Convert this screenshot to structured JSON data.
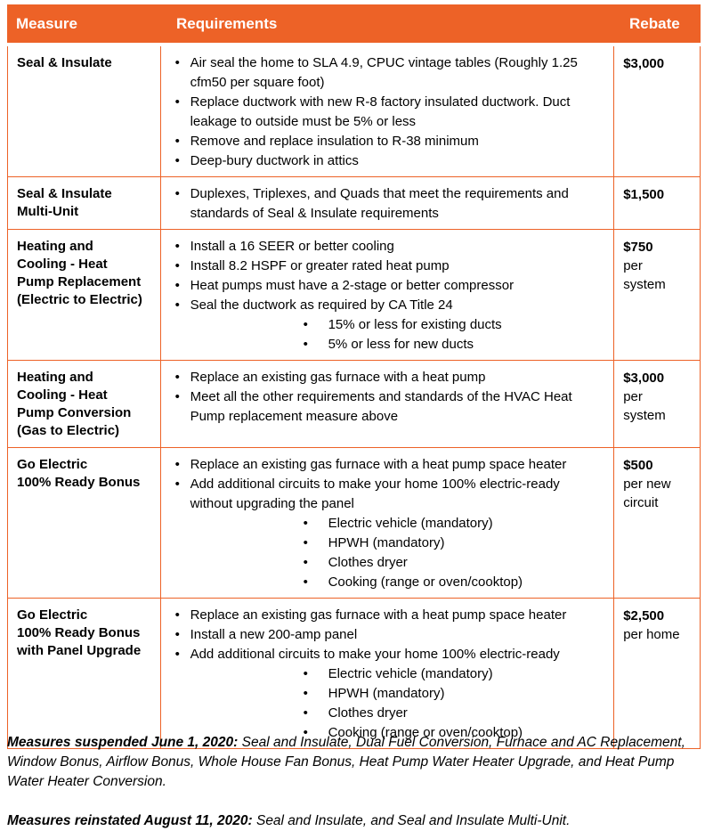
{
  "page": {
    "accent_color": "#ED6227",
    "text_color": "#000000",
    "background": "#ffffff"
  },
  "table": {
    "headers": [
      "Measure",
      "Requirements",
      "Rebate"
    ],
    "rows": [
      {
        "measure": "Seal & Insulate",
        "requirements": [
          {
            "level": 1,
            "text": "Air seal the home to SLA 4.9, CPUC vintage tables (Roughly 1.25 cfm50 per square foot)"
          },
          {
            "level": 1,
            "text": "Replace ductwork with new R-8 factory insulated ductwork. Duct leakage to outside must be 5% or less"
          },
          {
            "level": 1,
            "text": "Remove and replace insulation to R-38 minimum"
          },
          {
            "level": 1,
            "text": "Deep-bury ductwork in attics"
          }
        ],
        "rebate_amount": "$3,000",
        "rebate_unit": ""
      },
      {
        "measure": "Seal & Insulate\nMulti-Unit",
        "requirements": [
          {
            "level": 1,
            "text": "Duplexes, Triplexes, and Quads that meet the requirements and standards of Seal & Insulate requirements"
          }
        ],
        "rebate_amount": "$1,500",
        "rebate_unit": ""
      },
      {
        "measure": "Heating and\nCooling - Heat\nPump Replacement\n(Electric to Electric)",
        "requirements": [
          {
            "level": 1,
            "text": "Install a 16 SEER or better cooling"
          },
          {
            "level": 1,
            "text": "Install 8.2 HSPF or greater rated heat pump"
          },
          {
            "level": 1,
            "text": "Heat pumps must have a 2-stage or better compressor"
          },
          {
            "level": 1,
            "text": "Seal the ductwork as required by CA Title 24"
          },
          {
            "level": 2,
            "text": "15% or less for existing ducts"
          },
          {
            "level": 2,
            "text": "5% or less for new ducts"
          }
        ],
        "rebate_amount": "$750",
        "rebate_unit": "per\nsystem"
      },
      {
        "measure": "Heating and\nCooling - Heat\nPump Conversion\n(Gas to Electric)",
        "requirements": [
          {
            "level": 1,
            "text": "Replace an existing gas furnace with a heat pump"
          },
          {
            "level": 1,
            "text": "Meet all the other requirements and standards of the HVAC Heat Pump replacement measure above"
          }
        ],
        "rebate_amount": "$3,000",
        "rebate_unit": "per\nsystem"
      },
      {
        "measure": "Go Electric\n100% Ready Bonus",
        "requirements": [
          {
            "level": 1,
            "text": "Replace an existing gas furnace with a heat pump space heater"
          },
          {
            "level": 1,
            "text": "Add additional circuits to make your home 100% electric-ready without upgrading the panel"
          },
          {
            "level": 2,
            "text": "Electric vehicle (mandatory)"
          },
          {
            "level": 2,
            "text": "HPWH (mandatory)"
          },
          {
            "level": 2,
            "text": "Clothes dryer"
          },
          {
            "level": 2,
            "text": "Cooking (range or oven/cooktop)"
          }
        ],
        "rebate_amount": "$500",
        "rebate_unit": "per new\ncircuit"
      },
      {
        "measure": "Go Electric\n100% Ready Bonus\nwith Panel Upgrade",
        "requirements": [
          {
            "level": 1,
            "text": "Replace an existing gas furnace with a heat pump space heater"
          },
          {
            "level": 1,
            "text": "Install a new 200-amp panel"
          },
          {
            "level": 1,
            "text": "Add additional circuits to make your home 100% electric-ready"
          },
          {
            "level": 2,
            "text": "Electric vehicle (mandatory)"
          },
          {
            "level": 2,
            "text": "HPWH (mandatory)"
          },
          {
            "level": 2,
            "text": "Clothes dryer"
          },
          {
            "level": 2,
            "text": "Cooking (range or oven/cooktop)"
          }
        ],
        "rebate_amount": "$2,500",
        "rebate_unit": "per home"
      }
    ]
  },
  "notes": [
    {
      "lead": "Measures suspended June 1, 2020:",
      "text": " Seal and Insulate, Dual Fuel Conversion, Furnace and AC Replacement, Window Bonus, Airflow Bonus, Whole House Fan Bonus, Heat Pump Water Heater Upgrade, and Heat Pump Water Heater Conversion."
    },
    {
      "lead": "Measures reinstated August 11, 2020:",
      "text": " Seal and Insulate, and Seal and Insulate Multi-Unit."
    }
  ]
}
